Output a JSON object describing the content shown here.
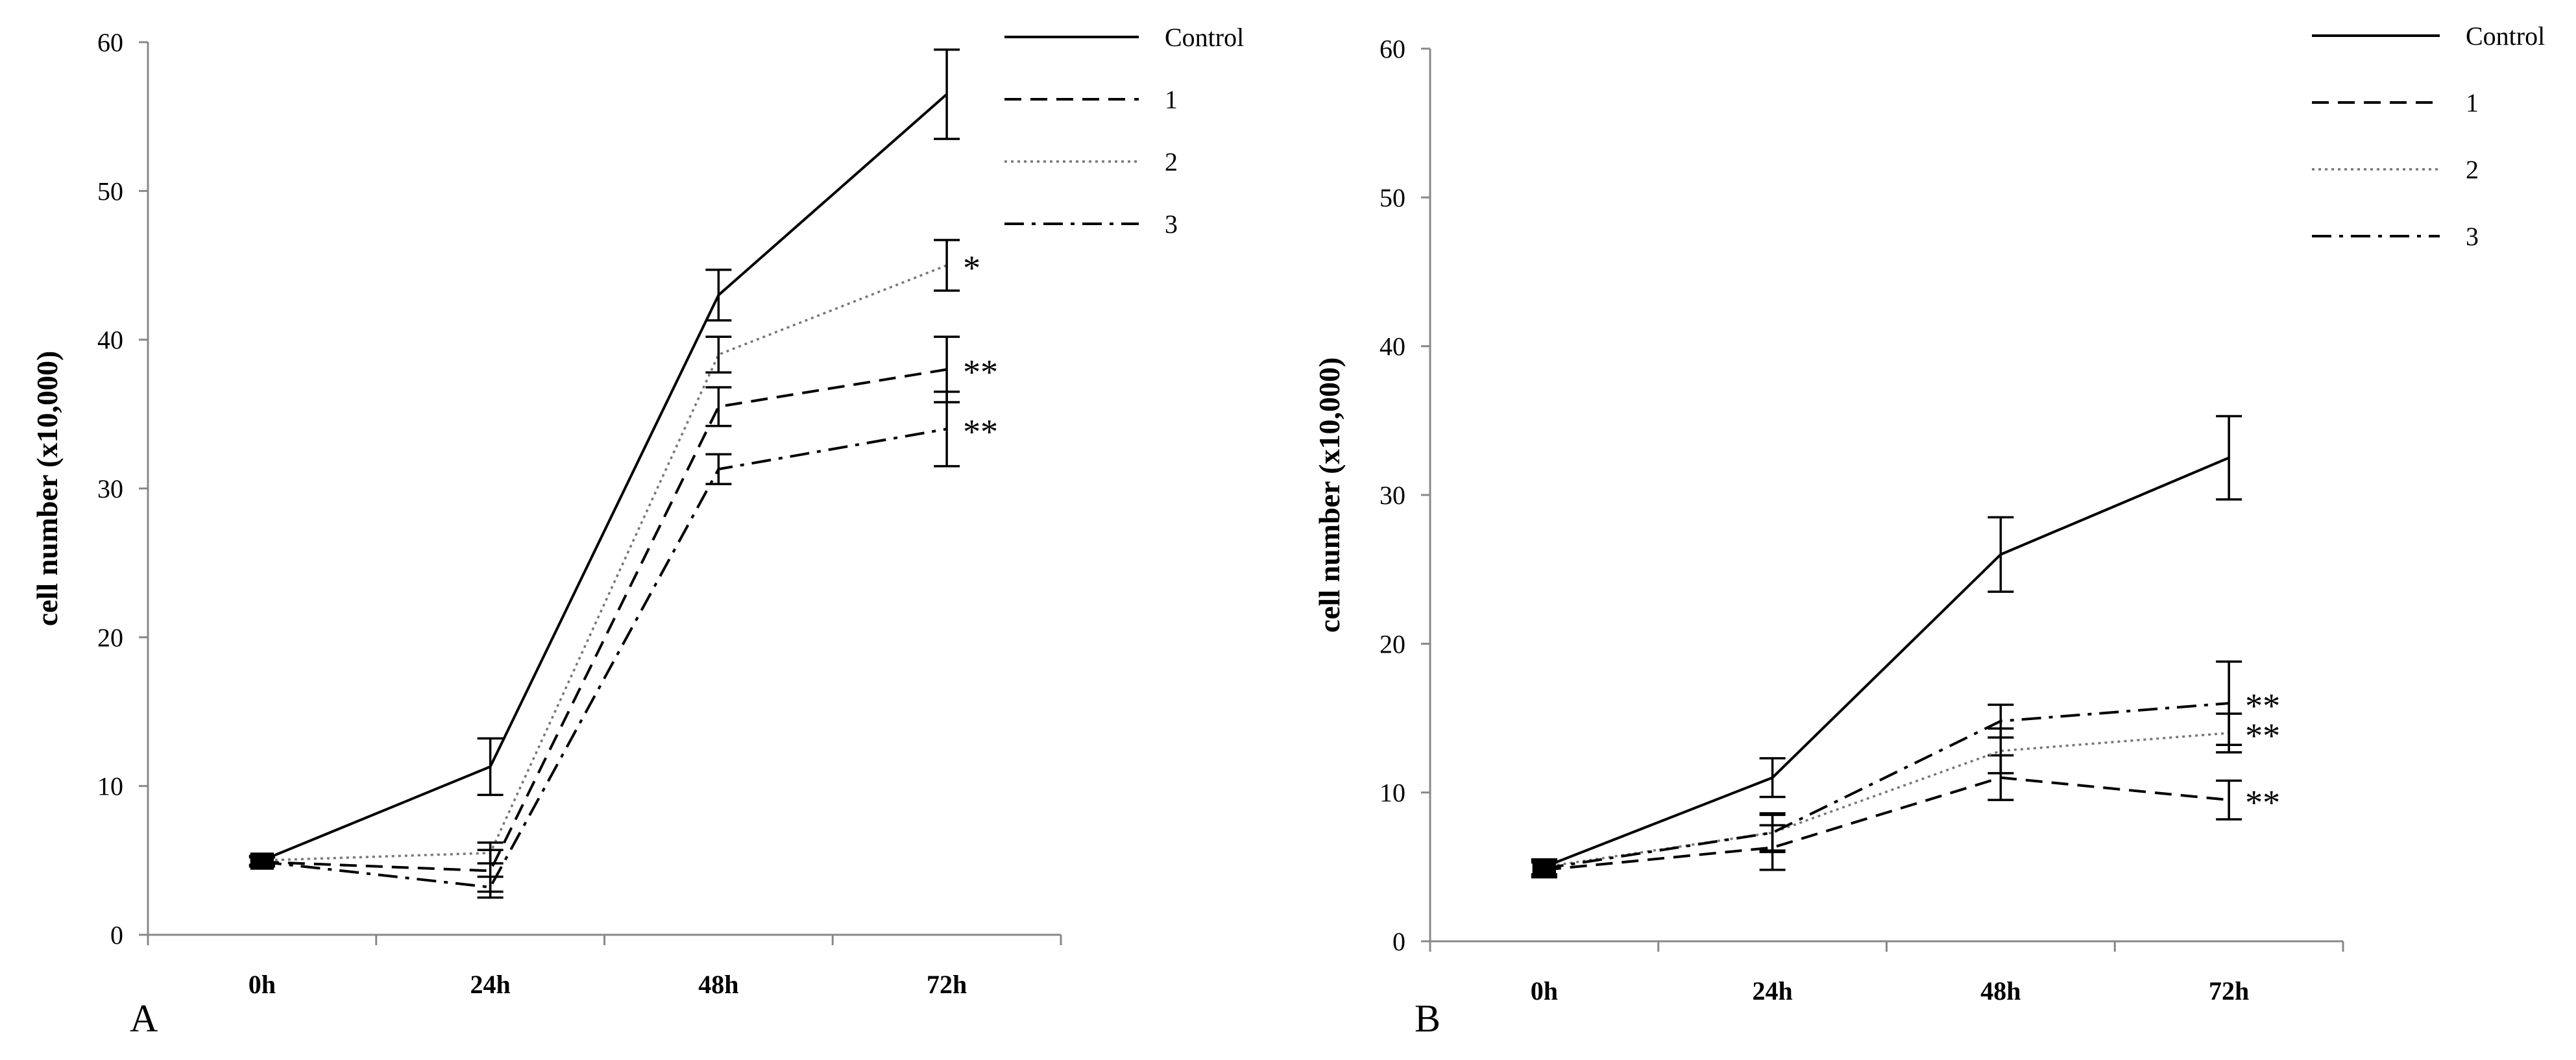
{
  "chart_data": [
    {
      "type": "line",
      "panel_label": "A",
      "categories": [
        "0h",
        "24h",
        "48h",
        "72h"
      ],
      "ylabel": "cell number (x10,000)",
      "ylim": [
        0,
        60
      ],
      "yticks": [
        0,
        10,
        20,
        30,
        40,
        50,
        60
      ],
      "grid": false,
      "legend_position": "top-right",
      "series": [
        {
          "name": "Control",
          "style": "solid",
          "values": [
            5,
            11.3,
            43,
            56.5
          ],
          "errors": [
            0.3,
            1.9,
            1.7,
            3
          ],
          "sig": [
            "",
            "",
            "",
            ""
          ]
        },
        {
          "name": "1",
          "style": "dashed",
          "values": [
            4.9,
            4.3,
            35.5,
            38
          ],
          "errors": [
            0.3,
            1.4,
            1.3,
            2.2
          ],
          "sig": [
            "",
            "",
            "",
            "**"
          ]
        },
        {
          "name": "2",
          "style": "dotted",
          "values": [
            5,
            5.5,
            39,
            45
          ],
          "errors": [
            0.3,
            0.7,
            1.2,
            1.7
          ],
          "sig": [
            "",
            "",
            "",
            "*"
          ]
        },
        {
          "name": "3",
          "style": "dashdot",
          "values": [
            4.9,
            3.2,
            31.3,
            34
          ],
          "errors": [
            0.3,
            0.7,
            1,
            2.5
          ],
          "sig": [
            "",
            "",
            "",
            "**"
          ]
        }
      ]
    },
    {
      "type": "line",
      "panel_label": "B",
      "categories": [
        "0h",
        "24h",
        "48h",
        "72h"
      ],
      "ylabel": "cell number (x10,000)",
      "ylim": [
        0,
        60
      ],
      "yticks": [
        0,
        10,
        20,
        30,
        40,
        50,
        60
      ],
      "grid": false,
      "legend_position": "top-right",
      "series": [
        {
          "name": "Control",
          "style": "solid",
          "values": [
            5,
            11,
            26,
            32.5
          ],
          "errors": [
            0.5,
            1.3,
            2.5,
            2.8
          ],
          "sig": [
            "",
            "",
            "",
            ""
          ]
        },
        {
          "name": "1",
          "style": "dashed",
          "values": [
            4.8,
            6.3,
            11,
            9.5
          ],
          "errors": [
            0.5,
            1.5,
            1.5,
            1.3
          ],
          "sig": [
            "",
            "",
            "",
            "**"
          ]
        },
        {
          "name": "2",
          "style": "dotted",
          "values": [
            5,
            7.3,
            12.8,
            14
          ],
          "errors": [
            0.5,
            1.2,
            1.5,
            1.3
          ],
          "sig": [
            "",
            "",
            "",
            "**"
          ]
        },
        {
          "name": "3",
          "style": "dashdot",
          "values": [
            4.9,
            7.3,
            14.8,
            16
          ],
          "errors": [
            0.5,
            1.3,
            1.1,
            2.8
          ],
          "sig": [
            "",
            "",
            "",
            "**"
          ]
        }
      ]
    }
  ]
}
